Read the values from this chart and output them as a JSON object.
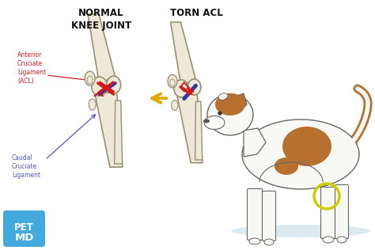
{
  "bg_color": "#ffffff",
  "title1": "NORMAL\nKNEE JOINT",
  "title2": "TORN ACL",
  "label_acl": "Anterior\nCruciate\nLigament\n(ACL)",
  "label_ccl": "Caudal\nCruciate\nLigament",
  "label_acl_color": "#cc2222",
  "label_ccl_color": "#5555bb",
  "bone_color": "#ede8d8",
  "bone_edge": "#999070",
  "ligament_blue": "#3333aa",
  "ligament_red": "#cc2222",
  "arrow_color": "#ddaa00",
  "petmd_bg": "#44aadd",
  "petmd_text": "#ffffff",
  "title_fontsize": 8.5,
  "label_fontsize": 5.5,
  "dog_white": "#f8f8f5",
  "dog_brown": "#b87030",
  "dog_edge": "#666666",
  "ground_color": "#cce0ea"
}
